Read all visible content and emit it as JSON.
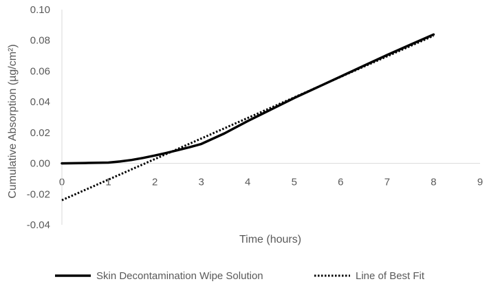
{
  "chart_data": {
    "type": "line",
    "title": "",
    "xlabel": "Time (hours)",
    "ylabel": "Cumulative Absorption (µg/cm²)",
    "xlim": [
      0,
      9
    ],
    "ylim": [
      -0.04,
      0.1
    ],
    "x_ticks": [
      0,
      1,
      2,
      3,
      4,
      5,
      6,
      7,
      8,
      9
    ],
    "x_tick_labels": [
      "0",
      "1",
      "2",
      "3",
      "4",
      "5",
      "6",
      "7",
      "8",
      "9"
    ],
    "y_ticks": [
      -0.04,
      -0.02,
      0.0,
      0.02,
      0.04,
      0.06,
      0.08,
      0.1
    ],
    "y_tick_labels": [
      "-0.04",
      "-0.02",
      "0.00",
      "0.02",
      "0.04",
      "0.06",
      "0.08",
      "0.10"
    ],
    "grid": false,
    "legend_position": "bottom",
    "series": [
      {
        "name": "Skin Decontamination Wipe Solution",
        "style": "solid",
        "color": "#000000",
        "x": [
          0,
          0.5,
          1,
          1.25,
          1.5,
          1.75,
          2,
          2.25,
          2.5,
          2.75,
          3,
          3.5,
          4,
          4.5,
          5,
          5.5,
          6,
          6.5,
          7,
          7.5,
          8
        ],
        "y": [
          0,
          0.0002,
          0.0005,
          0.0012,
          0.0022,
          0.0035,
          0.0051,
          0.0068,
          0.0086,
          0.0105,
          0.0126,
          0.0195,
          0.0275,
          0.035,
          0.0425,
          0.0495,
          0.0565,
          0.0635,
          0.0705,
          0.0772,
          0.0838
        ]
      },
      {
        "name": "Line of Best Fit",
        "style": "dotted",
        "color": "#000000",
        "x": [
          0,
          8
        ],
        "y": [
          -0.024,
          0.083
        ]
      }
    ]
  }
}
